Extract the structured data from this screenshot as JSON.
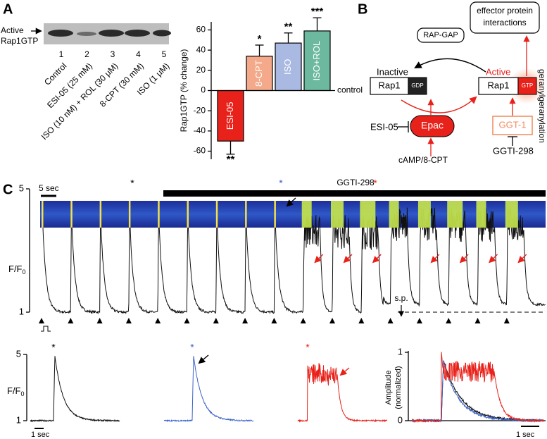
{
  "panels": {
    "a": "A",
    "b": "B",
    "c": "C"
  },
  "blot": {
    "label": [
      "Active",
      "Rap1GTP"
    ],
    "lanes": [
      "1",
      "2",
      "3",
      "4",
      "5"
    ],
    "conditions": [
      "Control",
      "ESI-05 (25 mM)",
      "ISO (10 nM) + ROL (30 μM)",
      "8-CPT (30 mM)",
      "ISO (1 μM)"
    ]
  },
  "chart_data": {
    "type": "bar",
    "y_label": "Rap1GTP (% change)",
    "categories": [
      "ESI-05",
      "8-CPT",
      "ISO",
      "ISO+ROL"
    ],
    "values": [
      -50,
      34,
      47,
      59
    ],
    "errors": [
      13,
      11,
      10,
      13
    ],
    "significance": [
      "**",
      "*",
      "**",
      "***"
    ],
    "colors": [
      "#e8221b",
      "#f3a98a",
      "#a9b9e2",
      "#6cb9a0"
    ],
    "ylim": [
      -68,
      68
    ],
    "yticks": [
      -60,
      -40,
      -20,
      0,
      20,
      40,
      60
    ],
    "baseline_label": "control"
  },
  "diagram": {
    "effector": [
      "effector protein",
      "interactions"
    ],
    "gap": "RAP-GAP",
    "inactive": "Inactive",
    "active": "Active",
    "rap1_inactive": "Rap1",
    "gdp": "GDP",
    "rap1_active": "Rap1",
    "gtp": "GTP",
    "prenylation": "geranylgeranylation",
    "ggt": "GGT-1",
    "esi": "ESI-05",
    "epac": "Epac",
    "ggti": "GGTI-298",
    "camp": "cAMP/8-CPT"
  },
  "traces": {
    "scale_bar": "5 sec",
    "drug": "GGTI-298",
    "y_label": "F/F",
    "y_sub": "0",
    "yticks": [
      1,
      5
    ],
    "ylim": [
      1,
      5
    ],
    "stars": [
      "*",
      "*",
      "*"
    ],
    "sp": "s.p.",
    "bottom_stars": [
      "*",
      "*",
      "*"
    ],
    "time_bar": "1 sec",
    "amp_label": [
      "Amplitude",
      "(normalized)"
    ],
    "amp_ticks": [
      0,
      1
    ],
    "amp_lim": [
      0,
      1
    ],
    "time_bar2": "1 sec"
  }
}
